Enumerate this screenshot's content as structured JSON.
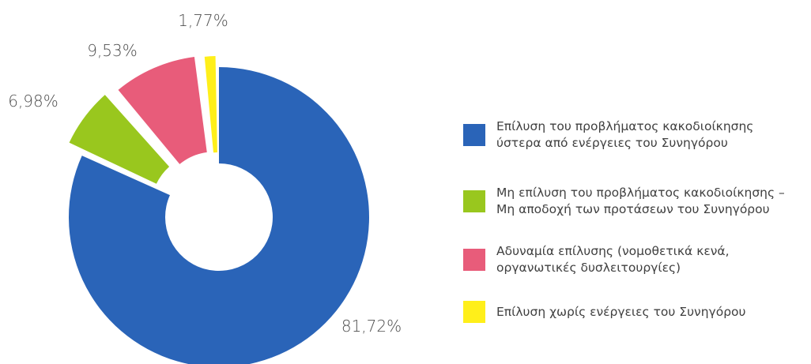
{
  "chart_data": {
    "type": "pie",
    "variant": "donut-exploded",
    "title": "",
    "categories": [
      "Επίλυση του προβλήματος κακοδιοίκησης\nύστερα από ενέργειες του Συνηγόρου",
      "Μη επίλυση του προβλήματος κακοδιοίκησης –\nΜη αποδοχή των προτάσεων του Συνηγόρου",
      "Αδυναμία επίλυσης (νομοθετικά κενά,\nοργανωτικές δυσλειτουργίες)",
      "Επίλυση χωρίς ενέργειες του Συνηγόρου"
    ],
    "values": [
      81.72,
      6.98,
      9.53,
      1.77
    ],
    "data_labels": [
      "81,72%",
      "6,98%",
      "9,53%",
      "1,77%"
    ],
    "colors": [
      "#2a64b8",
      "#99c71e",
      "#e85c7a",
      "#ffef1a"
    ],
    "legend_position": "right"
  }
}
